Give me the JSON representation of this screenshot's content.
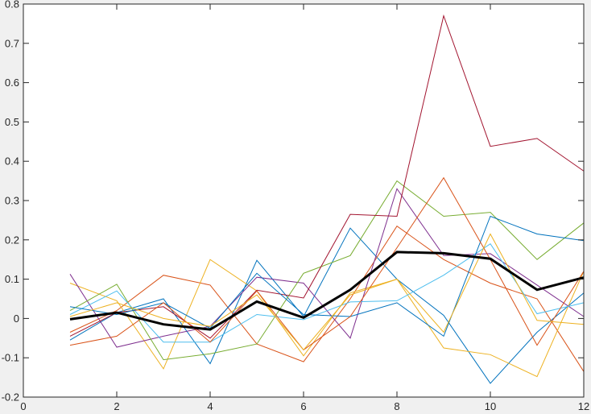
{
  "chart_data": {
    "type": "line",
    "title": "",
    "xlabel": "",
    "ylabel": "",
    "xlim": [
      0,
      12
    ],
    "ylim": [
      -0.2,
      0.8
    ],
    "xticks": [
      0,
      2,
      4,
      6,
      8,
      10,
      12
    ],
    "yticks": [
      -0.2,
      -0.1,
      0,
      0.1,
      0.2,
      0.3,
      0.4,
      0.5,
      0.6,
      0.7,
      0.8
    ],
    "xtick_labels": [
      "0",
      "2",
      "4",
      "6",
      "8",
      "10",
      "12"
    ],
    "ytick_labels": [
      "-0.2",
      "-0.1",
      "0",
      "0.1",
      "0.2",
      "0.3",
      "0.4",
      "0.5",
      "0.6",
      "0.7",
      "0.8"
    ],
    "grid": false,
    "legend": "none",
    "x": [
      1,
      2,
      3,
      4,
      5,
      6,
      7,
      8,
      9,
      10,
      11,
      12
    ],
    "series": [
      {
        "color": "#0072BD",
        "width": 1,
        "values": [
          -0.055,
          0.015,
          0.05,
          -0.115,
          0.148,
          0.005,
          0.23,
          0.1,
          0.008,
          -0.165,
          -0.035,
          0.065
        ]
      },
      {
        "color": "#D95319",
        "width": 1,
        "values": [
          -0.035,
          0.02,
          0.11,
          0.085,
          -0.065,
          -0.11,
          0.05,
          0.235,
          0.15,
          0.09,
          0.05,
          -0.135
        ]
      },
      {
        "color": "#EDB120",
        "width": 1,
        "values": [
          0.09,
          0.045,
          -0.128,
          0.15,
          0.07,
          -0.095,
          0.065,
          0.1,
          -0.075,
          -0.092,
          -0.148,
          0.12
        ]
      },
      {
        "color": "#7E2F8E",
        "width": 1,
        "values": [
          0.113,
          -0.073,
          -0.045,
          -0.02,
          0.105,
          0.09,
          -0.05,
          0.33,
          0.16,
          0.165,
          0.085,
          0.005
        ]
      },
      {
        "color": "#77AC30",
        "width": 1,
        "values": [
          0.02,
          0.087,
          -0.105,
          -0.09,
          -0.065,
          0.115,
          0.16,
          0.35,
          0.26,
          0.27,
          0.15,
          0.243
        ]
      },
      {
        "color": "#4DBEEE",
        "width": 1,
        "values": [
          0.01,
          0.07,
          -0.06,
          -0.06,
          0.01,
          -0.003,
          0.042,
          0.045,
          0.11,
          0.19,
          0.012,
          0.04
        ]
      },
      {
        "color": "#A2142F",
        "width": 1,
        "values": [
          -0.045,
          0.015,
          0.03,
          -0.05,
          0.072,
          0.052,
          0.265,
          0.26,
          0.77,
          0.438,
          0.458,
          0.375
        ]
      },
      {
        "color": "#0072BD",
        "width": 1,
        "values": [
          0.03,
          0.01,
          0.04,
          -0.025,
          0.115,
          0.01,
          0.005,
          0.04,
          -0.045,
          0.26,
          0.215,
          0.198
        ]
      },
      {
        "color": "#D95319",
        "width": 1,
        "values": [
          -0.068,
          -0.045,
          0.04,
          -0.06,
          0.07,
          -0.08,
          0.005,
          0.18,
          0.358,
          0.15,
          -0.068,
          0.12
        ]
      },
      {
        "color": "#EDB120",
        "width": 1,
        "values": [
          0.005,
          0.04,
          0.0,
          -0.02,
          0.06,
          -0.08,
          0.06,
          0.1,
          -0.035,
          0.215,
          -0.005,
          -0.015
        ]
      },
      {
        "color": "#000000",
        "width": 3,
        "values": [
          -0.002,
          0.015,
          -0.015,
          -0.028,
          0.043,
          0.002,
          0.073,
          0.169,
          0.166,
          0.152,
          0.073,
          0.104
        ]
      }
    ]
  }
}
